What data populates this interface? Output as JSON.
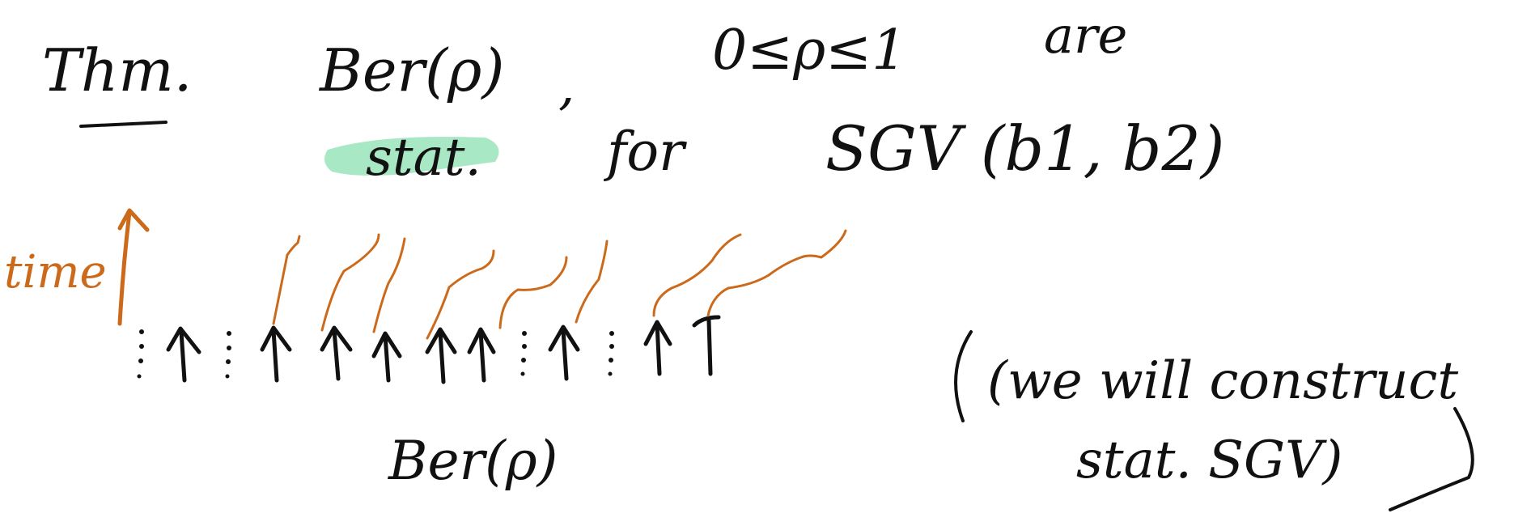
{
  "line1": {
    "thm": "Thm.",
    "ber_rho": "Ber(ρ)",
    "comma": ",",
    "range": "0≤ρ≤1",
    "are": "are"
  },
  "line2": {
    "stat": "stat.",
    "for": "for",
    "sgv": "SGV (b1, b2)"
  },
  "diagram": {
    "time_label": "time",
    "bottom_label": "Ber(ρ)",
    "columns": [
      "dots",
      "up",
      "dots",
      "up",
      "up",
      "up",
      "up",
      "up",
      "dots",
      "up",
      "dots",
      "up",
      "up"
    ]
  },
  "note": {
    "line1": "(we will construct",
    "line2": "stat. SGV)"
  },
  "colors": {
    "ink": "#111111",
    "orange": "#cc6a1c",
    "highlight": "#a8e8c4"
  }
}
